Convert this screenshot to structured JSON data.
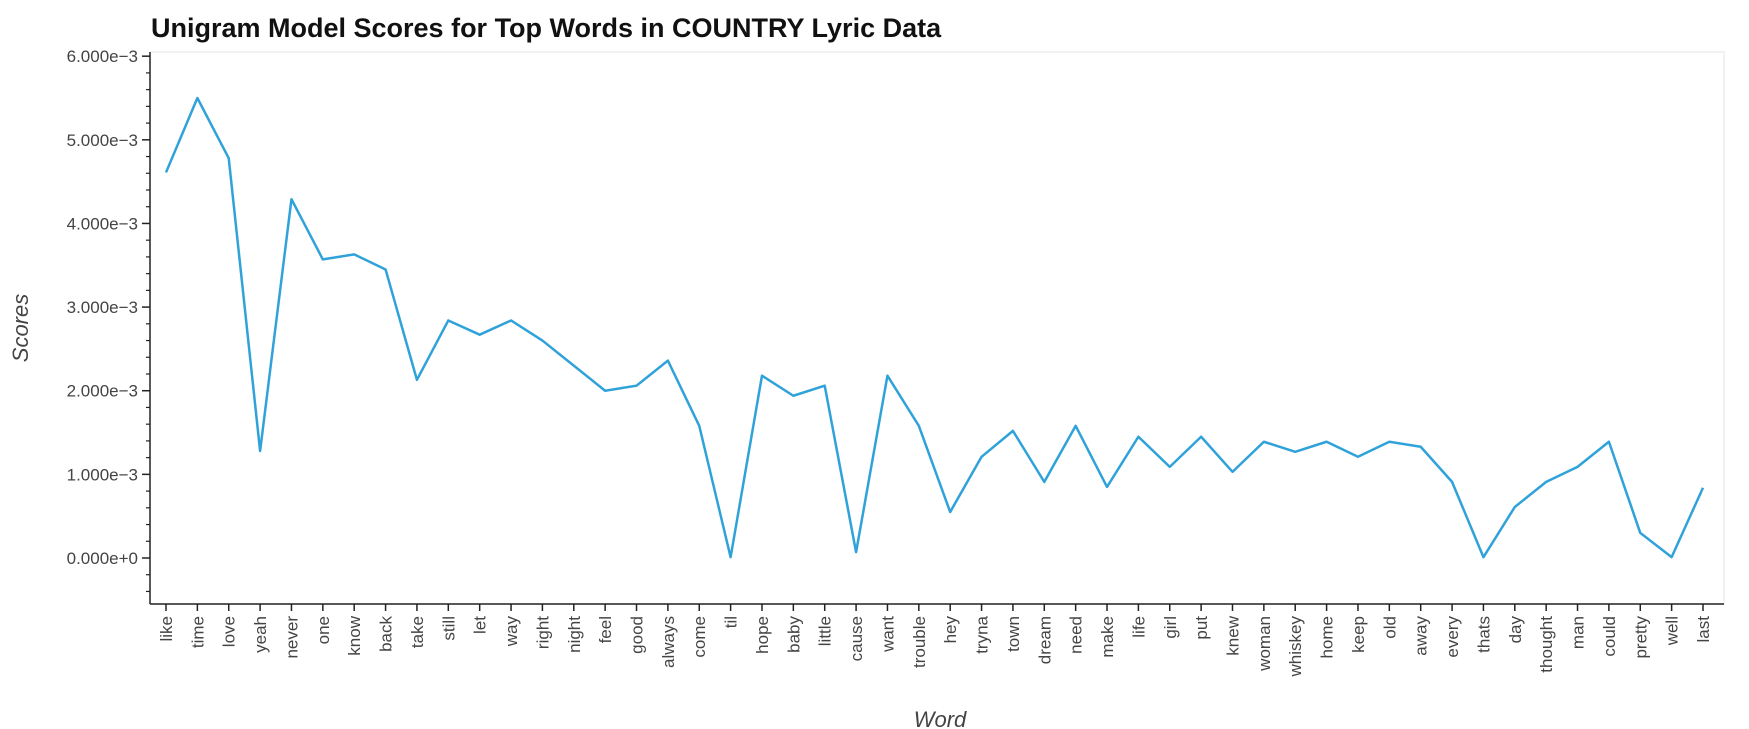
{
  "chart_data": {
    "type": "line",
    "title": "Unigram Model Scores for Top Words in COUNTRY Lyric Data",
    "xlabel": "Word",
    "ylabel": "Scores",
    "ylim": [
      -0.00055,
      0.00605
    ],
    "yticks": [
      0,
      0.001,
      0.002,
      0.003,
      0.004,
      0.005,
      0.006
    ],
    "ytick_labels": [
      "0.000e+0",
      "1.000e−3",
      "2.000e−3",
      "3.000e−3",
      "4.000e−3",
      "5.000e−3",
      "6.000e−3"
    ],
    "grid": false,
    "line_color": "#30a2da",
    "categories": [
      "like",
      "time",
      "love",
      "yeah",
      "never",
      "one",
      "know",
      "back",
      "take",
      "still",
      "let",
      "way",
      "right",
      "night",
      "feel",
      "good",
      "always",
      "come",
      "til",
      "hope",
      "baby",
      "little",
      "cause",
      "want",
      "trouble",
      "hey",
      "tryna",
      "town",
      "dream",
      "need",
      "make",
      "life",
      "girl",
      "put",
      "knew",
      "woman",
      "whiskey",
      "home",
      "keep",
      "old",
      "away",
      "every",
      "thats",
      "day",
      "thought",
      "man",
      "could",
      "pretty",
      "well",
      "last"
    ],
    "values": [
      0.00461,
      0.0055,
      0.00478,
      0.00128,
      0.00429,
      0.00357,
      0.00363,
      0.00345,
      0.00213,
      0.00284,
      0.00267,
      0.00284,
      0.0026,
      0.0023,
      0.002,
      0.00206,
      0.00236,
      0.00158,
      1e-05,
      0.00218,
      0.00194,
      0.00206,
      7e-05,
      0.00218,
      0.00158,
      0.00055,
      0.00121,
      0.00152,
      0.00091,
      0.00158,
      0.00085,
      0.00145,
      0.00109,
      0.00145,
      0.00103,
      0.00139,
      0.00127,
      0.00139,
      0.00121,
      0.00139,
      0.00133,
      0.00091,
      1e-05,
      0.00061,
      0.00091,
      0.00109,
      0.00139,
      0.0003,
      1e-05,
      0.00084
    ]
  }
}
